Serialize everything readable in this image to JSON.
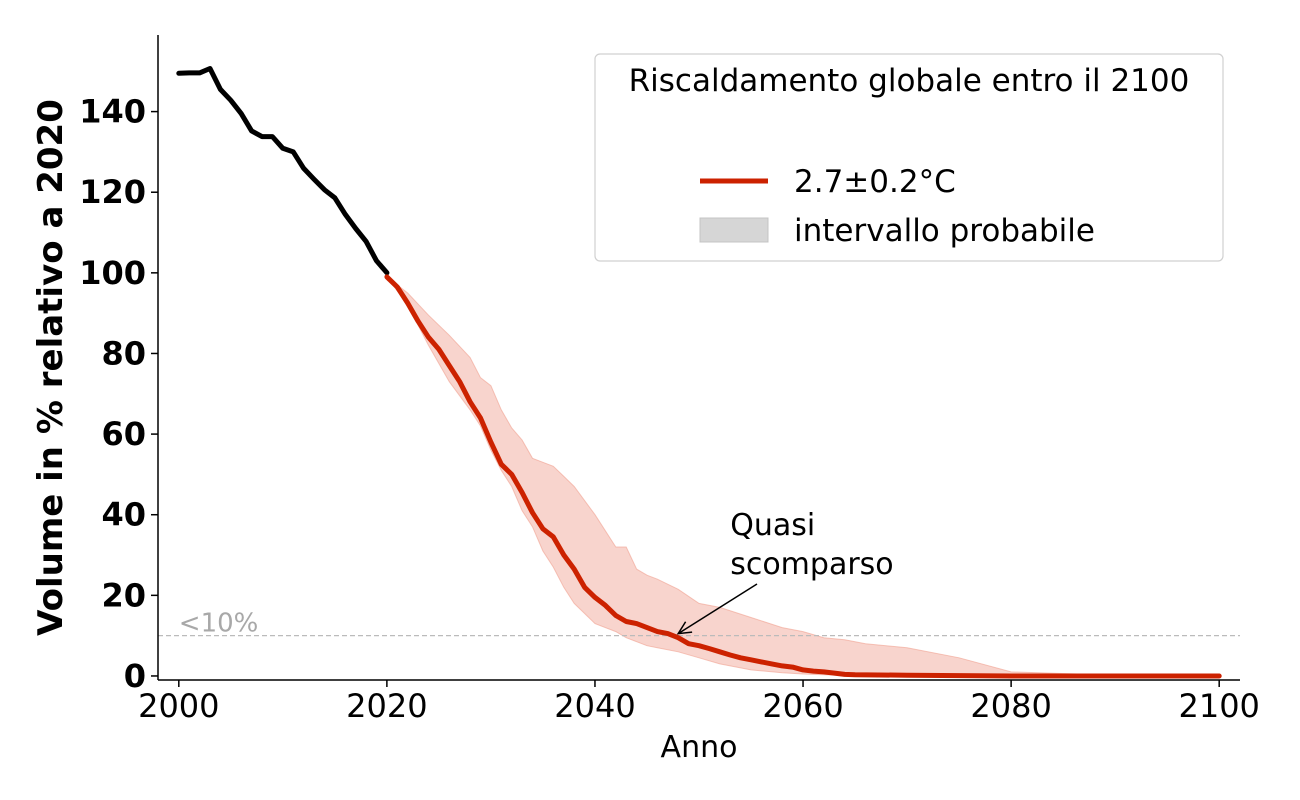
{
  "chart_data": {
    "type": "line",
    "xlabel": "Anno",
    "ylabel": "Volume in % relativo a 2020",
    "xlim": [
      1998,
      2102
    ],
    "ylim": [
      -1,
      159
    ],
    "xticks": [
      2000,
      2020,
      2040,
      2060,
      2080,
      2100
    ],
    "yticks": [
      0,
      20,
      40,
      60,
      80,
      100,
      120,
      140
    ],
    "grid": false,
    "legend": {
      "title": "Riscaldamento globale entro il 2100",
      "position": "top-right",
      "entries": [
        {
          "label": "2.7±0.2°C",
          "kind": "line",
          "color": "#cc2200"
        },
        {
          "label": "intervallo probabile",
          "kind": "band",
          "color": "#d6d6d6"
        }
      ]
    },
    "threshold": {
      "y": 10,
      "label": "<10%",
      "color": "#bbbbbb"
    },
    "annotation": {
      "lines": [
        "Quasi",
        "scomparso"
      ],
      "text_at": [
        2053,
        30
      ],
      "arrow_to": [
        2048,
        10.5
      ]
    },
    "series": [
      {
        "role": "observed",
        "color": "#000000",
        "x": [
          2000,
          2001,
          2002,
          2003,
          2004,
          2005,
          2006,
          2007,
          2008,
          2009,
          2010,
          2011,
          2012,
          2013,
          2014,
          2015,
          2016,
          2017,
          2018,
          2019,
          2020
        ],
        "y": [
          149.5,
          149.6,
          149.6,
          150.7,
          145.5,
          142.8,
          139.5,
          135.2,
          133.8,
          133.8,
          130.9,
          130,
          125.9,
          123.2,
          120.6,
          118.6,
          114.5,
          111,
          107.8,
          103,
          100
        ]
      },
      {
        "role": "projection",
        "name": "2.7±0.2°C",
        "color": "#cc2200",
        "x": [
          2020,
          2021,
          2022,
          2023,
          2024,
          2025,
          2026,
          2027,
          2028,
          2029,
          2030,
          2031,
          2032,
          2033,
          2034,
          2035,
          2036,
          2037,
          2038,
          2039,
          2040,
          2041,
          2042,
          2043,
          2044,
          2045,
          2046,
          2047,
          2048,
          2049,
          2050,
          2051,
          2052,
          2053,
          2054,
          2055,
          2056,
          2057,
          2058,
          2059,
          2060,
          2061,
          2062,
          2063,
          2064,
          2065,
          2070,
          2075,
          2080,
          2090,
          2100
        ],
        "y": [
          99,
          96.5,
          92.5,
          88,
          84,
          81,
          77,
          73,
          68,
          64,
          58,
          52.5,
          50,
          45.5,
          40.5,
          36.5,
          34.5,
          30,
          26.5,
          22,
          19.5,
          17.5,
          15,
          13.5,
          13,
          12,
          11,
          10.5,
          9.5,
          8,
          7.5,
          6.8,
          6,
          5.2,
          4.5,
          4,
          3.5,
          3,
          2.5,
          2.2,
          1.5,
          1.2,
          1,
          0.7,
          0.4,
          0.3,
          0.2,
          0.1,
          0,
          0,
          0
        ]
      }
    ],
    "band": {
      "name": "intervallo probabile",
      "color": "#f0a090",
      "x": [
        2020,
        2022,
        2024,
        2026,
        2028,
        2029,
        2030,
        2031,
        2032,
        2033,
        2034,
        2035,
        2036,
        2037,
        2038,
        2040,
        2042,
        2043,
        2044,
        2045,
        2046,
        2048,
        2050,
        2052,
        2055,
        2058,
        2060,
        2062,
        2064,
        2066,
        2070,
        2075,
        2080,
        2090,
        2100
      ],
      "upper": [
        99,
        95,
        89.5,
        84.5,
        79,
        74,
        72,
        66,
        61.5,
        58.5,
        54,
        53,
        52,
        49.5,
        47,
        40,
        32,
        32,
        26.5,
        25,
        24,
        21.5,
        18,
        17,
        14.5,
        12,
        11,
        9.5,
        9,
        8,
        7,
        4.5,
        1,
        0.2,
        0
      ],
      "lower": [
        99,
        92,
        82,
        73,
        66,
        62,
        56,
        51,
        47,
        41,
        37,
        31,
        27,
        22,
        18,
        13,
        11,
        9.5,
        8.5,
        7.5,
        7,
        6,
        4.5,
        3,
        1.5,
        0.8,
        0.5,
        0.3,
        0.2,
        0.1,
        0,
        0,
        0,
        0,
        0
      ]
    }
  }
}
